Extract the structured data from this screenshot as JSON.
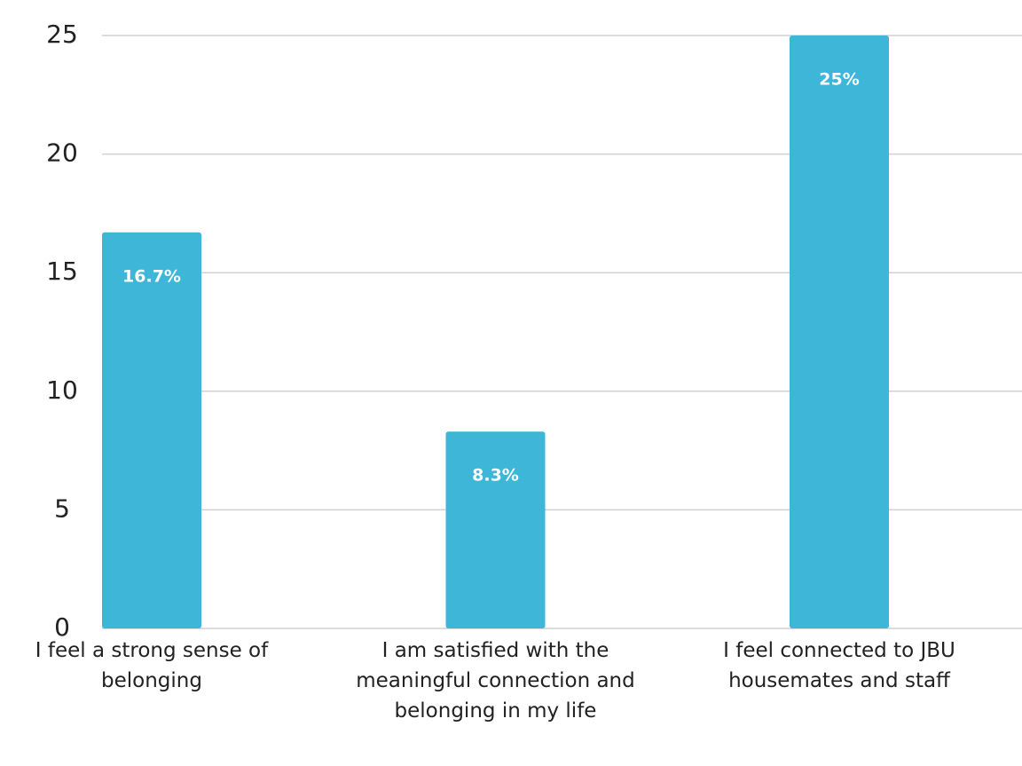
{
  "chart_data": {
    "type": "bar",
    "categories": [
      "I feel a strong sense of belonging",
      "I am satisfied with the meaningful connection and belonging in my life",
      "I feel connected to JBU housemates and staff"
    ],
    "values": [
      16.7,
      8.3,
      25
    ],
    "value_labels": [
      "16.7%",
      "8.3%",
      "25%"
    ],
    "color": "#3db6d8",
    "ylim": [
      0,
      25
    ],
    "yticks": [
      0,
      5,
      10,
      15,
      20,
      25
    ],
    "grid": true
  }
}
